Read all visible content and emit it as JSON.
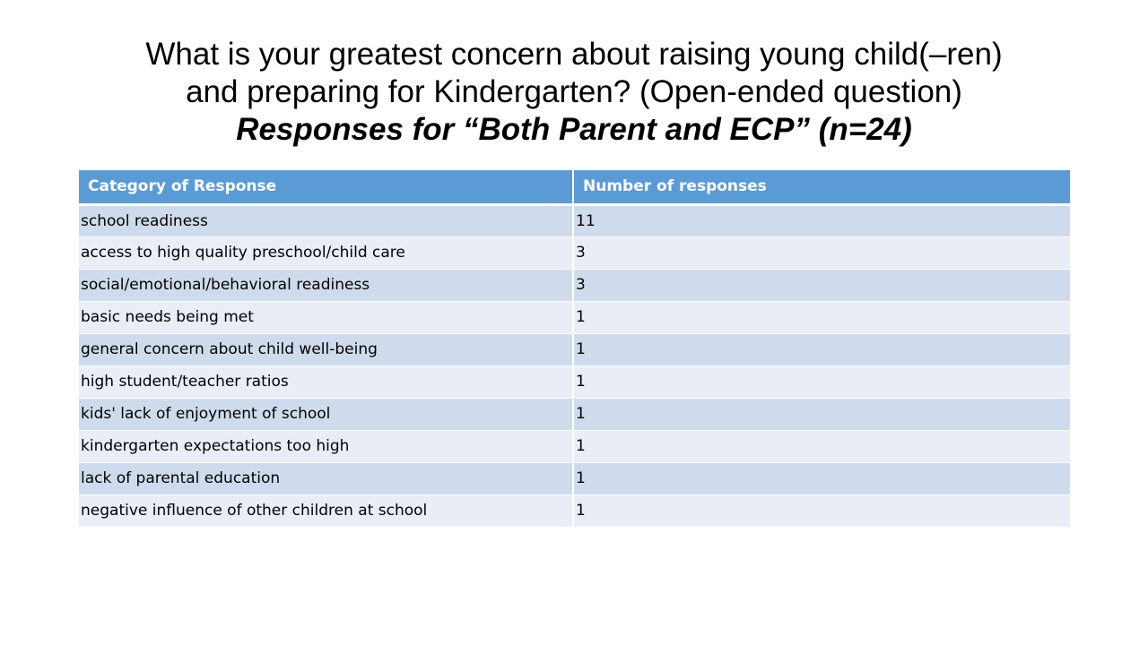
{
  "title": {
    "line1": "What is your greatest concern about raising young child(–ren)",
    "line2": "and preparing for Kindergarten? (Open-ended question)",
    "line3": "Responses for “Both Parent and ECP” (n=24)"
  },
  "table": {
    "headers": [
      "Category of Response",
      "Number of responses"
    ],
    "rows": [
      [
        "school readiness",
        "11"
      ],
      [
        "access to high quality preschool/child care",
        "3"
      ],
      [
        "social/emotional/behavioral readiness",
        "3"
      ],
      [
        "basic needs being met",
        "1"
      ],
      [
        "general concern about child well-being",
        "1"
      ],
      [
        "high student/teacher ratios",
        "1"
      ],
      [
        "kids' lack of enjoyment of school",
        "1"
      ],
      [
        "kindergarten expectations too high",
        "1"
      ],
      [
        "lack of parental education",
        "1"
      ],
      [
        "negative influence of other children at school",
        "1"
      ]
    ]
  },
  "colors": {
    "header_bg": "#5b9bd5",
    "row_dark": "#cfdbed",
    "row_light": "#e8edf6"
  }
}
